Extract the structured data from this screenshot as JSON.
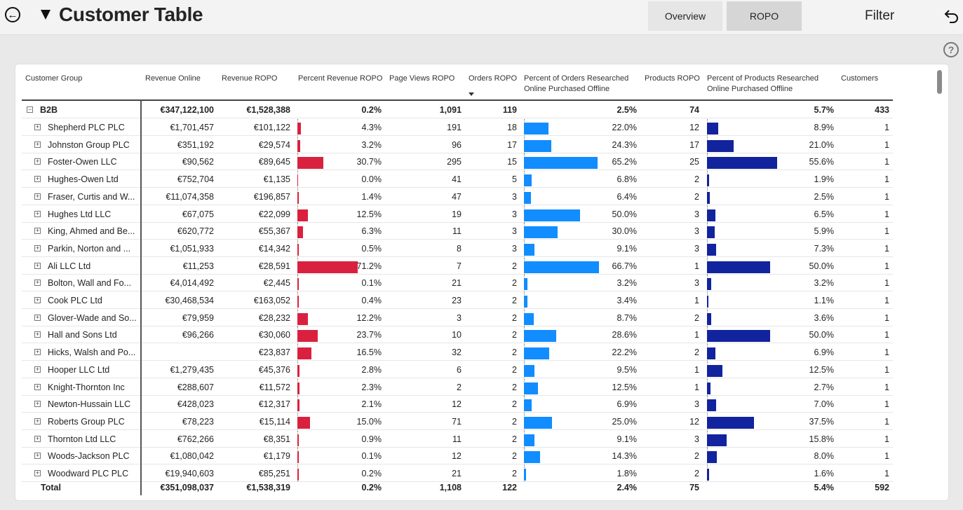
{
  "header": {
    "title": "Customer Table",
    "tabs": [
      "Overview",
      "ROPO"
    ],
    "filter_label": "Filter",
    "help_symbol": "?"
  },
  "colors": {
    "revenue_bar": "#d9213f",
    "orders_bar": "#118dff",
    "products_bar": "#12239e"
  },
  "table": {
    "columns": {
      "group": "Customer Group",
      "rev_online": "Revenue Online",
      "rev_ropo": "Revenue ROPO",
      "pct_rev": "Percent Revenue ROPO",
      "page_views": "Page Views ROPO",
      "orders": "Orders ROPO",
      "pct_orders_1": "Percent of Orders Researched",
      "pct_orders_2": "Online Purchased Offline",
      "products": "Products ROPO",
      "pct_products_1": "Percent of Products Researched",
      "pct_products_2": "Online Purchased Offline",
      "customers": "Customers"
    },
    "group": {
      "expand_symbol": "−",
      "name": "B2B",
      "rev_online": "€347,122,100",
      "rev_ropo": "€1,528,388",
      "pct_rev": "0.2%",
      "page_views": "1,091",
      "orders": "119",
      "pct_orders": "2.5%",
      "products": "74",
      "pct_products": "5.7%",
      "customers": "433"
    },
    "rows": [
      {
        "name": "Shepherd PLC PLC",
        "rev_online": "€1,701,457",
        "rev_ropo": "€101,122",
        "pct_rev": "4.3%",
        "page_views": "191",
        "orders": "18",
        "pct_orders": "22.0%",
        "products": "12",
        "pct_products": "8.9%",
        "customers": "1"
      },
      {
        "name": "Johnston Group PLC",
        "rev_online": "€351,192",
        "rev_ropo": "€29,574",
        "pct_rev": "3.2%",
        "page_views": "96",
        "orders": "17",
        "pct_orders": "24.3%",
        "products": "17",
        "pct_products": "21.0%",
        "customers": "1"
      },
      {
        "name": "Foster-Owen LLC",
        "rev_online": "€90,562",
        "rev_ropo": "€89,645",
        "pct_rev": "30.7%",
        "page_views": "295",
        "orders": "15",
        "pct_orders": "65.2%",
        "products": "25",
        "pct_products": "55.6%",
        "customers": "1"
      },
      {
        "name": "Hughes-Owen Ltd",
        "rev_online": "€752,704",
        "rev_ropo": "€1,135",
        "pct_rev": "0.0%",
        "page_views": "41",
        "orders": "5",
        "pct_orders": "6.8%",
        "products": "2",
        "pct_products": "1.9%",
        "customers": "1"
      },
      {
        "name": "Fraser, Curtis and W...",
        "rev_online": "€11,074,358",
        "rev_ropo": "€196,857",
        "pct_rev": "1.4%",
        "page_views": "47",
        "orders": "3",
        "pct_orders": "6.4%",
        "products": "2",
        "pct_products": "2.5%",
        "customers": "1"
      },
      {
        "name": "Hughes Ltd LLC",
        "rev_online": "€67,075",
        "rev_ropo": "€22,099",
        "pct_rev": "12.5%",
        "page_views": "19",
        "orders": "3",
        "pct_orders": "50.0%",
        "products": "3",
        "pct_products": "6.5%",
        "customers": "1"
      },
      {
        "name": "King, Ahmed and Be...",
        "rev_online": "€620,772",
        "rev_ropo": "€55,367",
        "pct_rev": "6.3%",
        "page_views": "11",
        "orders": "3",
        "pct_orders": "30.0%",
        "products": "3",
        "pct_products": "5.9%",
        "customers": "1"
      },
      {
        "name": "Parkin, Norton and ...",
        "rev_online": "€1,051,933",
        "rev_ropo": "€14,342",
        "pct_rev": "0.5%",
        "page_views": "8",
        "orders": "3",
        "pct_orders": "9.1%",
        "products": "3",
        "pct_products": "7.3%",
        "customers": "1"
      },
      {
        "name": "Ali LLC Ltd",
        "rev_online": "€11,253",
        "rev_ropo": "€28,591",
        "pct_rev": "71.2%",
        "page_views": "7",
        "orders": "2",
        "pct_orders": "66.7%",
        "products": "1",
        "pct_products": "50.0%",
        "customers": "1"
      },
      {
        "name": "Bolton, Wall and Fo...",
        "rev_online": "€4,014,492",
        "rev_ropo": "€2,445",
        "pct_rev": "0.1%",
        "page_views": "21",
        "orders": "2",
        "pct_orders": "3.2%",
        "products": "3",
        "pct_products": "3.2%",
        "customers": "1"
      },
      {
        "name": "Cook PLC Ltd",
        "rev_online": "€30,468,534",
        "rev_ropo": "€163,052",
        "pct_rev": "0.4%",
        "page_views": "23",
        "orders": "2",
        "pct_orders": "3.4%",
        "products": "1",
        "pct_products": "1.1%",
        "customers": "1"
      },
      {
        "name": "Glover-Wade and So...",
        "rev_online": "€79,959",
        "rev_ropo": "€28,232",
        "pct_rev": "12.2%",
        "page_views": "3",
        "orders": "2",
        "pct_orders": "8.7%",
        "products": "2",
        "pct_products": "3.6%",
        "customers": "1"
      },
      {
        "name": "Hall and Sons Ltd",
        "rev_online": "€96,266",
        "rev_ropo": "€30,060",
        "pct_rev": "23.7%",
        "page_views": "10",
        "orders": "2",
        "pct_orders": "28.6%",
        "products": "1",
        "pct_products": "50.0%",
        "customers": "1"
      },
      {
        "name": "Hicks, Walsh and Po...",
        "rev_online": "",
        "rev_ropo": "€23,837",
        "pct_rev": "16.5%",
        "page_views": "32",
        "orders": "2",
        "pct_orders": "22.2%",
        "products": "2",
        "pct_products": "6.9%",
        "customers": "1"
      },
      {
        "name": "Hooper LLC Ltd",
        "rev_online": "€1,279,435",
        "rev_ropo": "€45,376",
        "pct_rev": "2.8%",
        "page_views": "6",
        "orders": "2",
        "pct_orders": "9.5%",
        "products": "1",
        "pct_products": "12.5%",
        "customers": "1"
      },
      {
        "name": "Knight-Thornton Inc",
        "rev_online": "€288,607",
        "rev_ropo": "€11,572",
        "pct_rev": "2.3%",
        "page_views": "2",
        "orders": "2",
        "pct_orders": "12.5%",
        "products": "1",
        "pct_products": "2.7%",
        "customers": "1"
      },
      {
        "name": "Newton-Hussain LLC",
        "rev_online": "€428,023",
        "rev_ropo": "€12,317",
        "pct_rev": "2.1%",
        "page_views": "12",
        "orders": "2",
        "pct_orders": "6.9%",
        "products": "3",
        "pct_products": "7.0%",
        "customers": "1"
      },
      {
        "name": "Roberts Group PLC",
        "rev_online": "€78,223",
        "rev_ropo": "€15,114",
        "pct_rev": "15.0%",
        "page_views": "71",
        "orders": "2",
        "pct_orders": "25.0%",
        "products": "12",
        "pct_products": "37.5%",
        "customers": "1"
      },
      {
        "name": "Thornton Ltd LLC",
        "rev_online": "€762,266",
        "rev_ropo": "€8,351",
        "pct_rev": "0.9%",
        "page_views": "11",
        "orders": "2",
        "pct_orders": "9.1%",
        "products": "3",
        "pct_products": "15.8%",
        "customers": "1"
      },
      {
        "name": "Woods-Jackson PLC",
        "rev_online": "€1,080,042",
        "rev_ropo": "€1,179",
        "pct_rev": "0.1%",
        "page_views": "12",
        "orders": "2",
        "pct_orders": "14.3%",
        "products": "2",
        "pct_products": "8.0%",
        "customers": "1"
      },
      {
        "name": "Woodward PLC PLC",
        "rev_online": "€19,940,603",
        "rev_ropo": "€85,251",
        "pct_rev": "0.2%",
        "page_views": "21",
        "orders": "2",
        "pct_orders": "1.8%",
        "products": "2",
        "pct_products": "1.6%",
        "customers": "1"
      }
    ],
    "total": {
      "name": "Total",
      "rev_online": "€351,098,037",
      "rev_ropo": "€1,538,319",
      "pct_rev": "0.2%",
      "page_views": "1,108",
      "orders": "122",
      "pct_orders": "2.4%",
      "products": "75",
      "pct_products": "5.4%",
      "customers": "592"
    }
  }
}
